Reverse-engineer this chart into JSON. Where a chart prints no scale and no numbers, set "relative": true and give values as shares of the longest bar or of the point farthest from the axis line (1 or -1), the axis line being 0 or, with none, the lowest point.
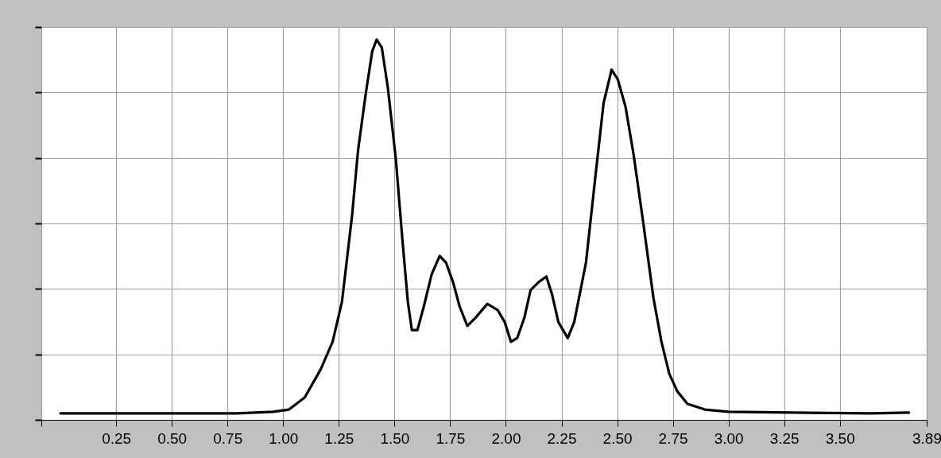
{
  "chart_data": {
    "type": "line",
    "relative": true,
    "grid": true,
    "xlim": [
      -0.086,
      3.89
    ],
    "xticks": [
      {
        "value": -0.086,
        "label": null
      },
      0.25,
      {
        "value": 0.5,
        "label": "0.50"
      },
      0.75,
      {
        "value": 1,
        "label": "1.00"
      },
      1.25,
      {
        "value": 1.5,
        "label": "1.50"
      },
      1.75,
      {
        "value": 2,
        "label": "2.00"
      },
      2.25,
      {
        "value": 2.5,
        "label": "2.50"
      },
      2.75,
      {
        "value": 3,
        "label": "3.00"
      },
      3.25,
      {
        "value": 3.5,
        "label": "3.50"
      },
      3.89
    ],
    "x": [
      0.0,
      0.79,
      0.955,
      1.026,
      1.097,
      1.168,
      1.222,
      1.264,
      1.31,
      1.336,
      1.37,
      1.4,
      1.42,
      1.443,
      1.47,
      1.506,
      1.535,
      1.56,
      1.578,
      1.603,
      1.632,
      1.667,
      1.703,
      1.731,
      1.763,
      1.792,
      1.827,
      1.863,
      1.917,
      1.963,
      1.995,
      2.023,
      2.051,
      2.083,
      2.111,
      2.147,
      2.182,
      2.207,
      2.236,
      2.278,
      2.307,
      2.36,
      2.403,
      2.439,
      2.475,
      2.503,
      2.538,
      2.574,
      2.617,
      2.663,
      2.699,
      2.734,
      2.77,
      2.816,
      2.894,
      3.0,
      3.285,
      3.64,
      3.81
    ],
    "series": [
      {
        "color": "#000000",
        "values": [
          0.017,
          0.017,
          0.021,
          0.027,
          0.059,
          0.132,
          0.205,
          0.31,
          0.54,
          0.707,
          0.854,
          0.969,
          1.0,
          0.979,
          0.874,
          0.686,
          0.477,
          0.31,
          0.236,
          0.236,
          0.299,
          0.383,
          0.431,
          0.414,
          0.362,
          0.299,
          0.247,
          0.268,
          0.305,
          0.289,
          0.257,
          0.205,
          0.215,
          0.268,
          0.341,
          0.362,
          0.377,
          0.331,
          0.257,
          0.215,
          0.257,
          0.414,
          0.644,
          0.833,
          0.921,
          0.895,
          0.822,
          0.697,
          0.519,
          0.32,
          0.205,
          0.121,
          0.075,
          0.042,
          0.027,
          0.021,
          0.019,
          0.017,
          0.019
        ]
      }
    ]
  }
}
